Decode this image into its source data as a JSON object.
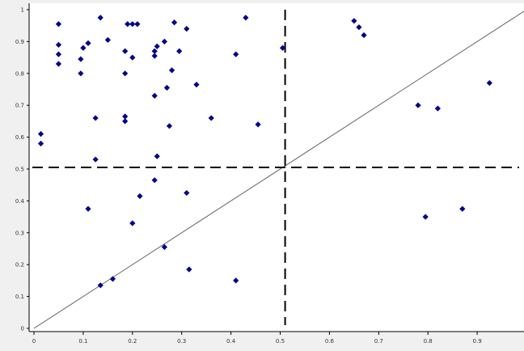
{
  "chart_data": {
    "type": "scatter",
    "title": "",
    "xlabel": "",
    "ylabel": "",
    "xlim": [
      0,
      1
    ],
    "ylim": [
      0,
      1
    ],
    "x_ticks": [
      "0",
      "0.1",
      "0.2",
      "0.3",
      "0.4",
      "0.5",
      "0.6",
      "0.7",
      "0.8",
      "0.9"
    ],
    "y_ticks": [
      "0",
      "0.1",
      "0.2",
      "0.3",
      "0.4",
      "0.5",
      "0.6",
      "0.7",
      "0.8",
      "0.9",
      "1"
    ],
    "grid": false,
    "reference_lines": {
      "diagonal": {
        "x1": 0,
        "y1": 0,
        "x2": 1,
        "y2": 1,
        "style": "solid"
      },
      "vertical_dashed_x": 0.51,
      "horizontal_dashed_y": 0.505
    },
    "colors": {
      "marker": "#00008b",
      "background": "#f0f0f0",
      "plot_area": "#ffffff",
      "diagonal": "#555555",
      "dashed": "#000000"
    },
    "points": [
      {
        "x": 0.014,
        "y": 0.61
      },
      {
        "x": 0.014,
        "y": 0.58
      },
      {
        "x": 0.05,
        "y": 0.955
      },
      {
        "x": 0.05,
        "y": 0.89
      },
      {
        "x": 0.05,
        "y": 0.86
      },
      {
        "x": 0.05,
        "y": 0.83
      },
      {
        "x": 0.095,
        "y": 0.845
      },
      {
        "x": 0.1,
        "y": 0.88
      },
      {
        "x": 0.11,
        "y": 0.895
      },
      {
        "x": 0.095,
        "y": 0.8
      },
      {
        "x": 0.135,
        "y": 0.975
      },
      {
        "x": 0.15,
        "y": 0.905
      },
      {
        "x": 0.125,
        "y": 0.66
      },
      {
        "x": 0.125,
        "y": 0.53
      },
      {
        "x": 0.11,
        "y": 0.375
      },
      {
        "x": 0.185,
        "y": 0.87
      },
      {
        "x": 0.19,
        "y": 0.955
      },
      {
        "x": 0.2,
        "y": 0.955
      },
      {
        "x": 0.21,
        "y": 0.955
      },
      {
        "x": 0.2,
        "y": 0.85
      },
      {
        "x": 0.185,
        "y": 0.8
      },
      {
        "x": 0.185,
        "y": 0.665
      },
      {
        "x": 0.185,
        "y": 0.65
      },
      {
        "x": 0.2,
        "y": 0.33
      },
      {
        "x": 0.215,
        "y": 0.415
      },
      {
        "x": 0.245,
        "y": 0.855
      },
      {
        "x": 0.245,
        "y": 0.87
      },
      {
        "x": 0.25,
        "y": 0.885
      },
      {
        "x": 0.265,
        "y": 0.9
      },
      {
        "x": 0.245,
        "y": 0.73
      },
      {
        "x": 0.25,
        "y": 0.54
      },
      {
        "x": 0.245,
        "y": 0.465
      },
      {
        "x": 0.285,
        "y": 0.96
      },
      {
        "x": 0.31,
        "y": 0.94
      },
      {
        "x": 0.295,
        "y": 0.87
      },
      {
        "x": 0.28,
        "y": 0.81
      },
      {
        "x": 0.27,
        "y": 0.755
      },
      {
        "x": 0.275,
        "y": 0.635
      },
      {
        "x": 0.33,
        "y": 0.765
      },
      {
        "x": 0.36,
        "y": 0.66
      },
      {
        "x": 0.31,
        "y": 0.425
      },
      {
        "x": 0.265,
        "y": 0.255
      },
      {
        "x": 0.315,
        "y": 0.185
      },
      {
        "x": 0.135,
        "y": 0.135
      },
      {
        "x": 0.16,
        "y": 0.155
      },
      {
        "x": 0.43,
        "y": 0.975
      },
      {
        "x": 0.41,
        "y": 0.86
      },
      {
        "x": 0.455,
        "y": 0.64
      },
      {
        "x": 0.41,
        "y": 0.15
      },
      {
        "x": 0.505,
        "y": 0.88
      },
      {
        "x": 0.65,
        "y": 0.965
      },
      {
        "x": 0.66,
        "y": 0.945
      },
      {
        "x": 0.67,
        "y": 0.92
      },
      {
        "x": 0.925,
        "y": 0.77
      },
      {
        "x": 0.78,
        "y": 0.7
      },
      {
        "x": 0.82,
        "y": 0.69
      },
      {
        "x": 0.795,
        "y": 0.35
      },
      {
        "x": 0.87,
        "y": 0.375
      }
    ]
  }
}
